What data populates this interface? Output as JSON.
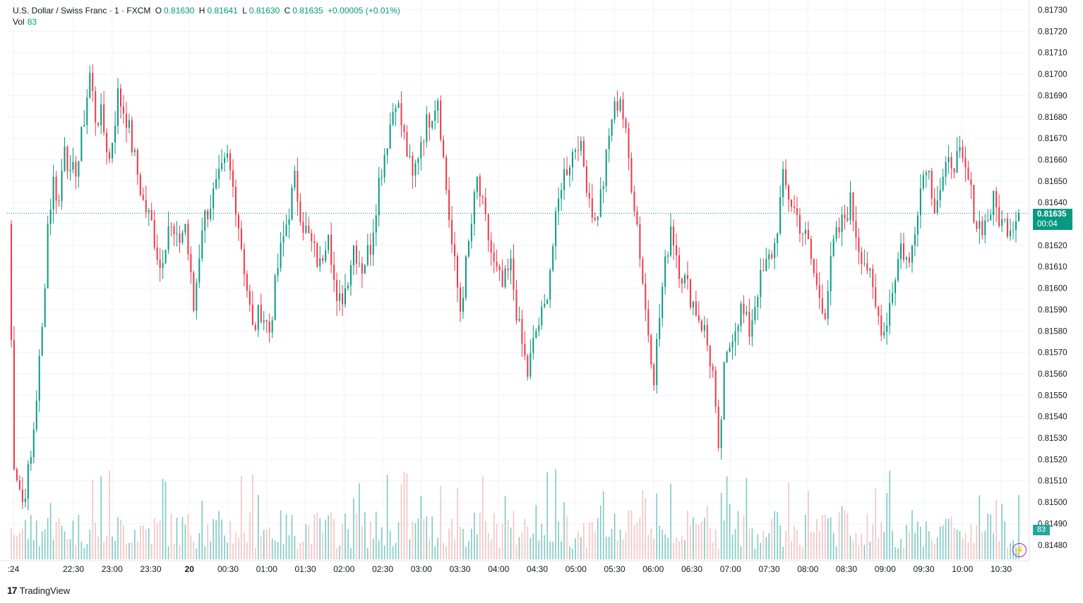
{
  "legend": {
    "symbol": "U.S. Dollar / Swiss Franc · 1 · FXCM",
    "open_label": "O",
    "open": "0.81630",
    "high_label": "H",
    "high": "0.81641",
    "low_label": "L",
    "low": "0.81630",
    "close_label": "C",
    "close": "0.81635",
    "change": "+0.00005 (+0.01%)",
    "vol_label": "Vol",
    "vol": "83"
  },
  "last_price": {
    "price": "0.81635",
    "countdown": "00:04"
  },
  "brand": "TradingView",
  "colors": {
    "up": "#089981",
    "down": "#f23645",
    "up_vol": "#26a69a",
    "down_vol": "#ef9a9a",
    "grid": "#f0f3fa"
  },
  "chart_data": {
    "type": "candlestick",
    "y_ticks": [
      "0.81730",
      "0.81720",
      "0.81710",
      "0.81700",
      "0.81690",
      "0.81680",
      "0.81670",
      "0.81660",
      "0.81650",
      "0.81640",
      "0.81630",
      "0.81620",
      "0.81610",
      "0.81600",
      "0.81590",
      "0.81580",
      "0.81570",
      "0.81560",
      "0.81550",
      "0.81540",
      "0.81530",
      "0.81520",
      "0.81510",
      "0.81500",
      "0.81490",
      "0.81480"
    ],
    "x_ticks": [
      ":24",
      "22:30",
      "23:00",
      "23:30",
      "20",
      "00:30",
      "01:00",
      "01:30",
      "02:00",
      "02:30",
      "03:00",
      "03:30",
      "04:00",
      "04:30",
      "05:00",
      "05:30",
      "06:00",
      "06:30",
      "07:00",
      "07:30",
      "08:00",
      "08:30",
      "09:00",
      "09:30",
      "10:00",
      "10:30"
    ],
    "ylim": [
      0.81478,
      0.81734
    ],
    "close_path": [
      [
        0,
        0.8163
      ],
      [
        2,
        0.8152
      ],
      [
        5,
        0.815
      ],
      [
        8,
        0.8152
      ],
      [
        10,
        0.8155
      ],
      [
        12,
        0.8158
      ],
      [
        14,
        0.8163
      ],
      [
        16,
        0.8165
      ],
      [
        18,
        0.8164
      ],
      [
        20,
        0.8167
      ],
      [
        22,
        0.8165
      ],
      [
        25,
        0.8166
      ],
      [
        27,
        0.8168
      ],
      [
        29,
        0.817
      ],
      [
        31,
        0.8168
      ],
      [
        33,
        0.8168
      ],
      [
        36,
        0.8166
      ],
      [
        39,
        0.8169
      ],
      [
        42,
        0.8168
      ],
      [
        45,
        0.8166
      ],
      [
        48,
        0.8164
      ],
      [
        51,
        0.8163
      ],
      [
        54,
        0.8161
      ],
      [
        57,
        0.8163
      ],
      [
        60,
        0.8162
      ],
      [
        63,
        0.8163
      ],
      [
        66,
        0.8159
      ],
      [
        69,
        0.8163
      ],
      [
        72,
        0.8164
      ],
      [
        75,
        0.8165
      ],
      [
        78,
        0.8166
      ],
      [
        81,
        0.8164
      ],
      [
        84,
        0.8161
      ],
      [
        87,
        0.8158
      ],
      [
        90,
        0.8159
      ],
      [
        93,
        0.8158
      ],
      [
        96,
        0.8161
      ],
      [
        99,
        0.8163
      ],
      [
        102,
        0.8165
      ],
      [
        105,
        0.8163
      ],
      [
        108,
        0.8162
      ],
      [
        111,
        0.8161
      ],
      [
        114,
        0.8163
      ],
      [
        117,
        0.8159
      ],
      [
        120,
        0.816
      ],
      [
        123,
        0.8162
      ],
      [
        126,
        0.8161
      ],
      [
        129,
        0.8162
      ],
      [
        132,
        0.8165
      ],
      [
        135,
        0.8167
      ],
      [
        138,
        0.8169
      ],
      [
        141,
        0.8167
      ],
      [
        144,
        0.8165
      ],
      [
        147,
        0.8167
      ],
      [
        150,
        0.8168
      ],
      [
        153,
        0.8169
      ],
      [
        155,
        0.8166
      ],
      [
        158,
        0.8162
      ],
      [
        161,
        0.8159
      ],
      [
        164,
        0.8162
      ],
      [
        167,
        0.8165
      ],
      [
        170,
        0.8163
      ],
      [
        173,
        0.8161
      ],
      [
        176,
        0.816
      ],
      [
        179,
        0.8161
      ],
      [
        182,
        0.8158
      ],
      [
        185,
        0.8156
      ],
      [
        188,
        0.8158
      ],
      [
        191,
        0.8159
      ],
      [
        194,
        0.8162
      ],
      [
        197,
        0.8165
      ],
      [
        200,
        0.8166
      ],
      [
        203,
        0.8167
      ],
      [
        206,
        0.8165
      ],
      [
        209,
        0.8163
      ],
      [
        212,
        0.8165
      ],
      [
        215,
        0.8168
      ],
      [
        218,
        0.8169
      ],
      [
        221,
        0.8166
      ],
      [
        224,
        0.8163
      ],
      [
        227,
        0.8159
      ],
      [
        230,
        0.8156
      ],
      [
        233,
        0.816
      ],
      [
        236,
        0.8163
      ],
      [
        239,
        0.8161
      ],
      [
        242,
        0.816
      ],
      [
        245,
        0.8159
      ],
      [
        248,
        0.8158
      ],
      [
        251,
        0.8156
      ],
      [
        253,
        0.8152
      ],
      [
        255,
        0.8156
      ],
      [
        258,
        0.8158
      ],
      [
        261,
        0.8159
      ],
      [
        264,
        0.8158
      ],
      [
        267,
        0.816
      ],
      [
        270,
        0.8161
      ],
      [
        273,
        0.8162
      ],
      [
        276,
        0.8165
      ],
      [
        279,
        0.8164
      ],
      [
        282,
        0.8163
      ],
      [
        285,
        0.8162
      ],
      [
        288,
        0.816
      ],
      [
        291,
        0.8159
      ],
      [
        294,
        0.8162
      ],
      [
        297,
        0.8163
      ],
      [
        300,
        0.8164
      ],
      [
        303,
        0.8162
      ],
      [
        306,
        0.8161
      ],
      [
        309,
        0.8159
      ],
      [
        312,
        0.8158
      ],
      [
        315,
        0.816
      ],
      [
        318,
        0.8162
      ],
      [
        321,
        0.8161
      ],
      [
        324,
        0.8164
      ],
      [
        327,
        0.8166
      ],
      [
        330,
        0.8164
      ],
      [
        333,
        0.8165
      ],
      [
        336,
        0.8166
      ],
      [
        339,
        0.8166
      ],
      [
        342,
        0.8165
      ],
      [
        345,
        0.8163
      ],
      [
        348,
        0.8163
      ],
      [
        351,
        0.8164
      ],
      [
        354,
        0.8163
      ],
      [
        357,
        0.8163
      ],
      [
        360,
        0.81635
      ]
    ]
  }
}
